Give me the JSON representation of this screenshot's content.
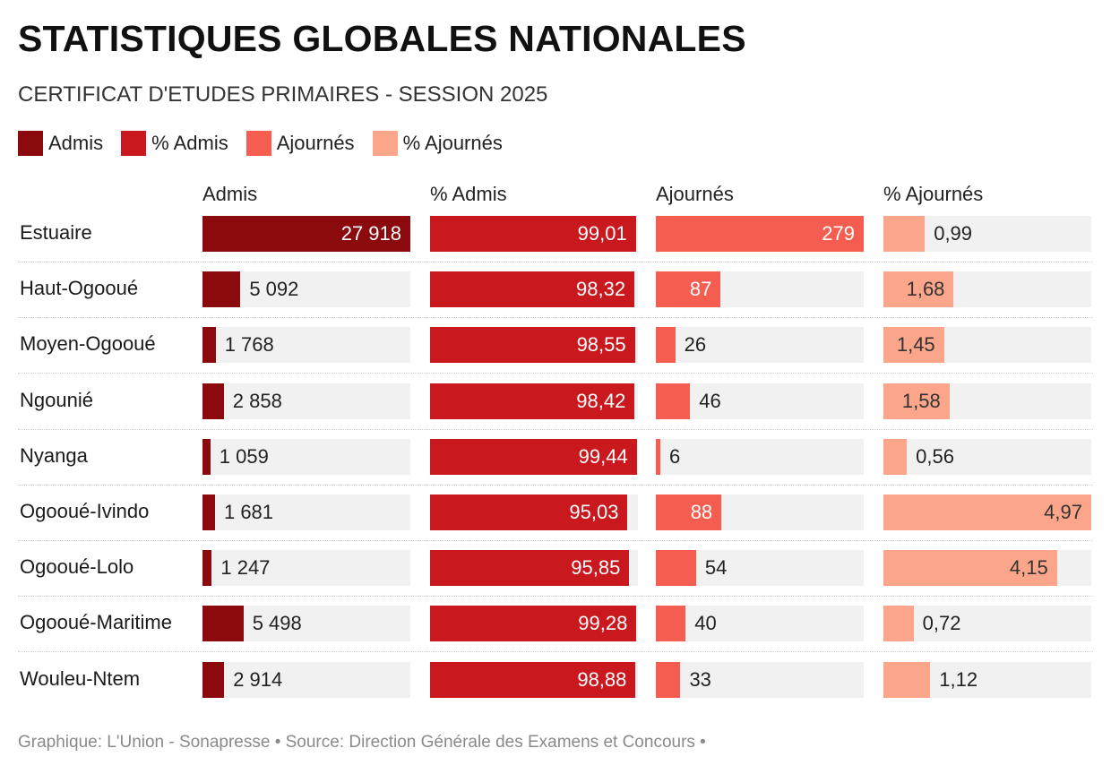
{
  "header": {
    "title": "STATISTIQUES GLOBALES NATIONALES",
    "subtitle": "CERTIFICAT D'ETUDES PRIMAIRES - SESSION 2025"
  },
  "legend": [
    {
      "label": "Admis",
      "color": "#8b0a0e"
    },
    {
      "label": "% Admis",
      "color": "#c9191e"
    },
    {
      "label": "Ajournés",
      "color": "#f45d4f"
    },
    {
      "label": "% Ajournés",
      "color": "#fba58a"
    }
  ],
  "chart_data": {
    "type": "table",
    "title": "STATISTIQUES GLOBALES NATIONALES",
    "subtitle": "CERTIFICAT D'ETUDES PRIMAIRES - SESSION 2025",
    "columns": [
      {
        "key": "admis",
        "label": "Admis",
        "max": 27918,
        "color": "#8b0a0e"
      },
      {
        "key": "pct_admis",
        "label": "% Admis",
        "max": 100,
        "color": "#c9191e"
      },
      {
        "key": "ajournes",
        "label": "Ajournés",
        "max": 279,
        "color": "#f45d4f"
      },
      {
        "key": "pct_ajournes",
        "label": "% Ajournés",
        "max": 4.97,
        "color": "#fba58a"
      }
    ],
    "rows": [
      {
        "province": "Estuaire",
        "admis": 27918,
        "pct_admis": 99.01,
        "ajournes": 279,
        "pct_ajournes": 0.99,
        "labels": {
          "admis": "27 918",
          "pct_admis": "99,01",
          "ajournes": "279",
          "pct_ajournes": "0,99"
        }
      },
      {
        "province": "Haut-Ogooué",
        "admis": 5092,
        "pct_admis": 98.32,
        "ajournes": 87,
        "pct_ajournes": 1.68,
        "labels": {
          "admis": "5 092",
          "pct_admis": "98,32",
          "ajournes": "87",
          "pct_ajournes": "1,68"
        }
      },
      {
        "province": "Moyen-Ogooué",
        "admis": 1768,
        "pct_admis": 98.55,
        "ajournes": 26,
        "pct_ajournes": 1.45,
        "labels": {
          "admis": "1 768",
          "pct_admis": "98,55",
          "ajournes": "26",
          "pct_ajournes": "1,45"
        }
      },
      {
        "province": "Ngounié",
        "admis": 2858,
        "pct_admis": 98.42,
        "ajournes": 46,
        "pct_ajournes": 1.58,
        "labels": {
          "admis": "2 858",
          "pct_admis": "98,42",
          "ajournes": "46",
          "pct_ajournes": "1,58"
        }
      },
      {
        "province": "Nyanga",
        "admis": 1059,
        "pct_admis": 99.44,
        "ajournes": 6,
        "pct_ajournes": 0.56,
        "labels": {
          "admis": "1 059",
          "pct_admis": "99,44",
          "ajournes": "6",
          "pct_ajournes": "0,56"
        }
      },
      {
        "province": "Ogooué-Ivindo",
        "admis": 1681,
        "pct_admis": 95.03,
        "ajournes": 88,
        "pct_ajournes": 4.97,
        "labels": {
          "admis": "1 681",
          "pct_admis": "95,03",
          "ajournes": "88",
          "pct_ajournes": "4,97"
        }
      },
      {
        "province": "Ogooué-Lolo",
        "admis": 1247,
        "pct_admis": 95.85,
        "ajournes": 54,
        "pct_ajournes": 4.15,
        "labels": {
          "admis": "1 247",
          "pct_admis": "95,85",
          "ajournes": "54",
          "pct_ajournes": "4,15"
        }
      },
      {
        "province": "Ogooué-Maritime",
        "admis": 5498,
        "pct_admis": 99.28,
        "ajournes": 40,
        "pct_ajournes": 0.72,
        "labels": {
          "admis": "5 498",
          "pct_admis": "99,28",
          "ajournes": "40",
          "pct_ajournes": "0,72"
        }
      },
      {
        "province": "Wouleu-Ntem",
        "admis": 2914,
        "pct_admis": 98.88,
        "ajournes": 33,
        "pct_ajournes": 1.12,
        "labels": {
          "admis": "2 914",
          "pct_admis": "98,88",
          "ajournes": "33",
          "pct_ajournes": "1,12"
        }
      }
    ]
  },
  "footer": {
    "credit": "Graphique: L'Union - Sonapresse • Source: Direction Générale des Examens et Concours •"
  }
}
